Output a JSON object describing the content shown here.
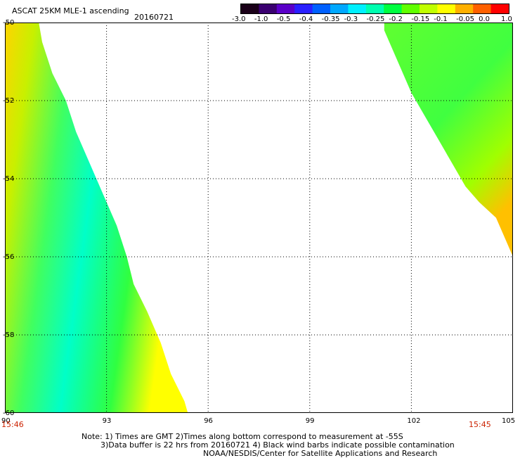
{
  "header": {
    "title": "ASCAT 25KM MLE-1 ascending",
    "date": "20160721"
  },
  "colorbar": {
    "labels": [
      "-3.0",
      "-1.0",
      "-0.5",
      "-0.4",
      "-0.35",
      "-0.3",
      "-0.25",
      "-0.2",
      "-0.15",
      "-0.1",
      "-0.05",
      "0.0",
      "1.0"
    ],
    "colors": [
      "#1a0018",
      "#3a0070",
      "#5a00c8",
      "#2a20ff",
      "#0060ff",
      "#00a8ff",
      "#00f0ff",
      "#00ffb0",
      "#00ff40",
      "#60ff00",
      "#c0ff00",
      "#ffff00",
      "#ffb000",
      "#ff6000",
      "#ff0000"
    ]
  },
  "map": {
    "lon_ticks": [
      "90",
      "93",
      "96",
      "99",
      "102",
      "105"
    ],
    "lat_ticks": [
      "-50",
      "-52",
      "-54",
      "-56",
      "-58",
      "-60"
    ],
    "lon_range": [
      90,
      105
    ],
    "lat_range": [
      -60,
      -50
    ],
    "grid": true,
    "time_left": "15:46",
    "time_right": "15:45",
    "swaths": [
      {
        "edge": [
          [
            90.0,
            -50.0
          ],
          [
            91.0,
            -50.0
          ],
          [
            91.1,
            -50.5
          ],
          [
            91.4,
            -51.3
          ],
          [
            91.8,
            -52.0
          ],
          [
            92.1,
            -52.8
          ],
          [
            92.5,
            -53.6
          ],
          [
            92.9,
            -54.4
          ],
          [
            93.3,
            -55.2
          ],
          [
            93.6,
            -56.0
          ],
          [
            93.8,
            -56.7
          ],
          [
            94.2,
            -57.4
          ],
          [
            94.6,
            -58.2
          ],
          [
            94.9,
            -59.0
          ],
          [
            95.3,
            -59.7
          ],
          [
            95.4,
            -60.0
          ],
          [
            90.0,
            -60.0
          ]
        ]
      },
      {
        "edge": [
          [
            101.2,
            -50.0
          ],
          [
            105.0,
            -50.0
          ],
          [
            105.0,
            -56.0
          ],
          [
            104.8,
            -55.6
          ],
          [
            104.5,
            -55.0
          ],
          [
            104.0,
            -54.6
          ],
          [
            103.6,
            -54.2
          ],
          [
            103.2,
            -53.6
          ],
          [
            102.8,
            -53.0
          ],
          [
            102.4,
            -52.4
          ],
          [
            102.0,
            -51.8
          ],
          [
            101.6,
            -51.0
          ],
          [
            101.2,
            -50.2
          ]
        ]
      }
    ]
  },
  "notes": {
    "line1": "Note: 1) Times are GMT 2)Times along bottom correspond to measurement at -55S",
    "line2": "3)Data buffer is 22 hrs from 20160721 4) Black wind barbs indicate possible contamination",
    "line3": "NOAA/NESDIS/Center for Satellite Applications and Research"
  }
}
